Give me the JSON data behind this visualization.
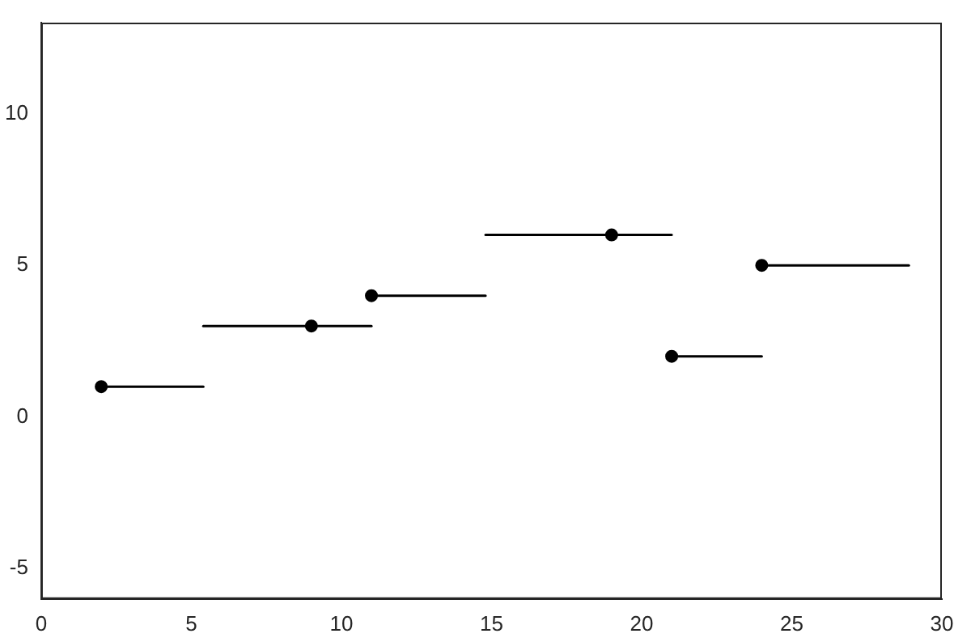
{
  "chart_data": {
    "type": "scatter",
    "x": [
      2,
      9,
      11,
      19,
      21,
      24
    ],
    "values": [
      1,
      3,
      4,
      6,
      2,
      5
    ],
    "xerrors": [
      [
        2,
        5.4
      ],
      [
        5.4,
        11
      ],
      [
        11,
        14.8
      ],
      [
        14.8,
        21
      ],
      [
        21,
        24
      ],
      [
        24,
        28.9
      ]
    ],
    "color": "#000000",
    "marker": "circle",
    "xlim": [
      0,
      30
    ],
    "xticks": [
      0,
      5,
      10,
      15,
      20,
      25,
      30
    ],
    "ylim": [
      -6,
      13
    ],
    "yticks": [
      -5,
      0,
      5,
      10
    ],
    "grid": false,
    "legend": false
  }
}
